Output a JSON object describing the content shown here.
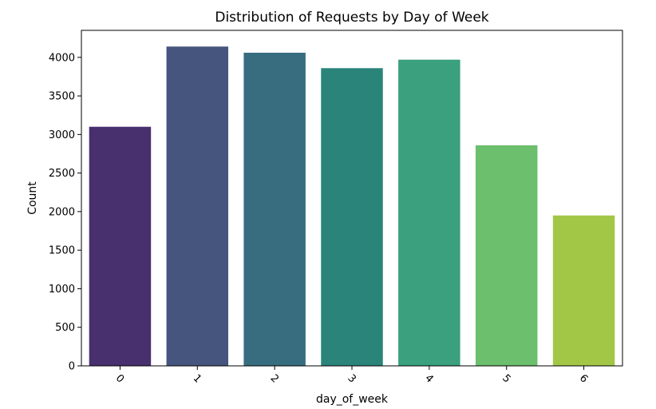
{
  "chart_data": {
    "type": "bar",
    "title": "Distribution of Requests by Day of Week",
    "xlabel": "day_of_week",
    "ylabel": "Count",
    "categories": [
      "0",
      "1",
      "2",
      "3",
      "4",
      "5",
      "6"
    ],
    "values": [
      3100,
      4140,
      4060,
      3860,
      3970,
      2860,
      1950
    ],
    "colors": [
      "#482f6e",
      "#45557e",
      "#376d7f",
      "#2a847a",
      "#3aa07d",
      "#6bbf6d",
      "#a2c747"
    ],
    "yticks": [
      0,
      500,
      1000,
      1500,
      2000,
      2500,
      3000,
      3500,
      4000
    ],
    "ylim": [
      0,
      4350
    ],
    "grid": false,
    "legend": "none",
    "xtick_rotation": 45
  }
}
